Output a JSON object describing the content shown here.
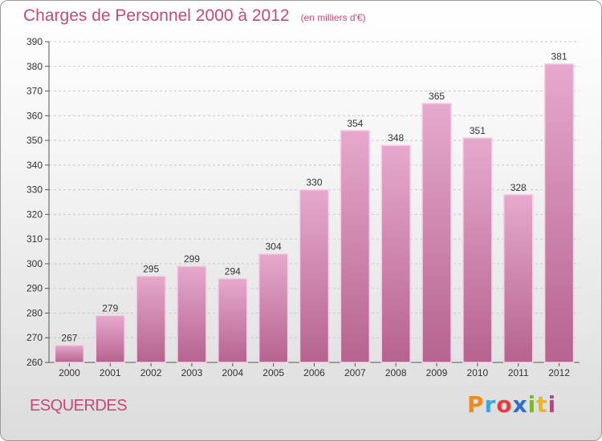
{
  "chart_data": {
    "type": "bar",
    "title": "Charges de Personnel 2000 à 2012",
    "subtitle": "(en milliers d'€)",
    "categories": [
      "2000",
      "2001",
      "2002",
      "2003",
      "2004",
      "2005",
      "2006",
      "2007",
      "2008",
      "2009",
      "2010",
      "2011",
      "2012"
    ],
    "values": [
      267,
      279,
      295,
      299,
      294,
      304,
      330,
      354,
      348,
      365,
      351,
      328,
      381
    ],
    "ylim": [
      260,
      390
    ],
    "yticks": [
      260,
      270,
      280,
      290,
      300,
      310,
      320,
      330,
      340,
      350,
      360,
      370,
      380,
      390
    ],
    "grid": true,
    "bar_color": "#d88fb8"
  },
  "commune": "ESQUERDES",
  "logo": {
    "letters": [
      "P",
      "r",
      "o",
      "x",
      "i",
      "t",
      "i"
    ]
  }
}
